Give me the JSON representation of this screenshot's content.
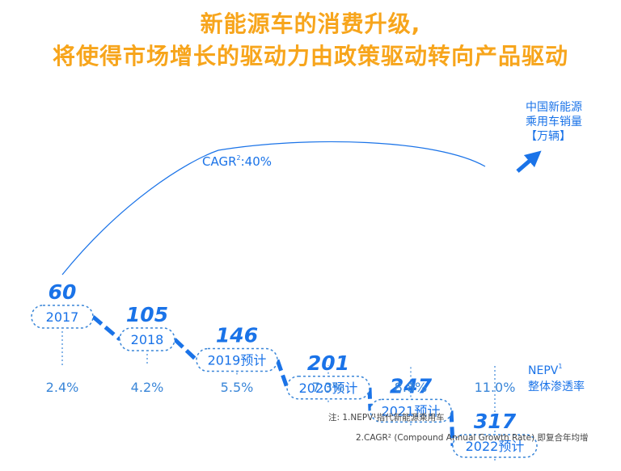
{
  "title_line1": "新能源车的消费升级,",
  "title_line2": "将使得市场增长的驱动力由政策驱动转向产品驱动",
  "colors": {
    "title": "#f7a51c",
    "blue": "#1a73e8",
    "dashed": "#3a86d8"
  },
  "chart_data": {
    "type": "line",
    "series_label_lines": [
      "中国新能源",
      "乘用车销量",
      "【万辆】"
    ],
    "categories": [
      "2017",
      "2018",
      "2019预计",
      "2020预计",
      "2021预计",
      "2022预计"
    ],
    "values": [
      60,
      105,
      146,
      201,
      247,
      317
    ],
    "value_labels": [
      "60",
      "105",
      "146",
      "201",
      "247",
      "317"
    ],
    "penetration_label_lines": [
      "NEPV",
      "整体渗透率"
    ],
    "penetration_sup": "1",
    "penetration": [
      "2.4%",
      "4.2%",
      "5.5%",
      "7.3%",
      "8.8%",
      "11.0%"
    ],
    "cagr_prefix": "CAGR",
    "cagr_sup": "2",
    "cagr_value": ":40%",
    "notes": [
      "注: 1.NEPV¹指代新能源乘用车",
      "2.CAGR² (Compound Annual Growth Rate) 即复合年均增"
    ]
  }
}
